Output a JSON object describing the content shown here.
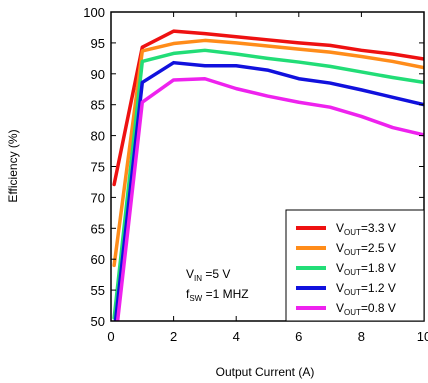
{
  "chart_data": {
    "type": "line",
    "xlabel": "Output Current (A)",
    "ylabel": "Efficiency (%)",
    "xlim": [
      0,
      10
    ],
    "ylim": [
      50,
      100
    ],
    "xticks": [
      0,
      2,
      4,
      6,
      8,
      10
    ],
    "yticks": [
      50,
      55,
      60,
      65,
      70,
      75,
      80,
      85,
      90,
      95,
      100
    ],
    "grid": false,
    "legend_position": "bottom-right",
    "annotation": {
      "vin": {
        "main": "V",
        "sub": "IN",
        "rest": " =5 V"
      },
      "fsw": {
        "main": "f",
        "sub": "SW",
        "rest": " =1 MHZ"
      }
    },
    "series": [
      {
        "legend": {
          "main": "V",
          "sub": "OUT",
          "rest": "=3.3 V"
        },
        "color": "#ee1111",
        "x": [
          0.1,
          1,
          2,
          3,
          4,
          5,
          6,
          7,
          8,
          9,
          10
        ],
        "y": [
          72.1,
          94.3,
          96.9,
          96.5,
          96.0,
          95.5,
          95.0,
          94.6,
          93.8,
          93.2,
          92.4
        ]
      },
      {
        "legend": {
          "main": "V",
          "sub": "OUT",
          "rest": "=2.5 V"
        },
        "color": "#ff8c1a",
        "x": [
          0.1,
          1,
          2,
          3,
          4,
          5,
          6,
          7,
          8,
          9,
          10
        ],
        "y": [
          59.0,
          93.7,
          94.9,
          95.4,
          95.0,
          94.5,
          94.0,
          93.5,
          92.8,
          92.0,
          91.0
        ]
      },
      {
        "legend": {
          "main": "V",
          "sub": "OUT",
          "rest": "=1.8 V"
        },
        "color": "#22dd77",
        "x": [
          0.1,
          1,
          2,
          3,
          4,
          5,
          6,
          7,
          8,
          9,
          10
        ],
        "y": [
          50.5,
          92.0,
          93.3,
          93.8,
          93.2,
          92.5,
          91.9,
          91.2,
          90.3,
          89.4,
          88.6
        ]
      },
      {
        "legend": {
          "main": "V",
          "sub": "OUT",
          "rest": "=1.2 V"
        },
        "color": "#1111dd",
        "x": [
          0.1,
          1,
          2,
          3,
          4,
          5,
          6,
          7,
          8,
          9,
          10
        ],
        "y": [
          48.0,
          88.6,
          91.8,
          91.3,
          91.3,
          90.6,
          89.2,
          88.5,
          87.4,
          86.2,
          85.0
        ]
      },
      {
        "legend": {
          "main": "V",
          "sub": "OUT",
          "rest": "=0.8 V"
        },
        "color": "#ee22ee",
        "x": [
          0.1,
          1,
          2,
          3,
          4,
          5,
          6,
          7,
          8,
          9,
          10
        ],
        "y": [
          45.0,
          85.4,
          89.0,
          89.2,
          87.6,
          86.4,
          85.4,
          84.6,
          83.1,
          81.3,
          80.1
        ]
      }
    ]
  }
}
